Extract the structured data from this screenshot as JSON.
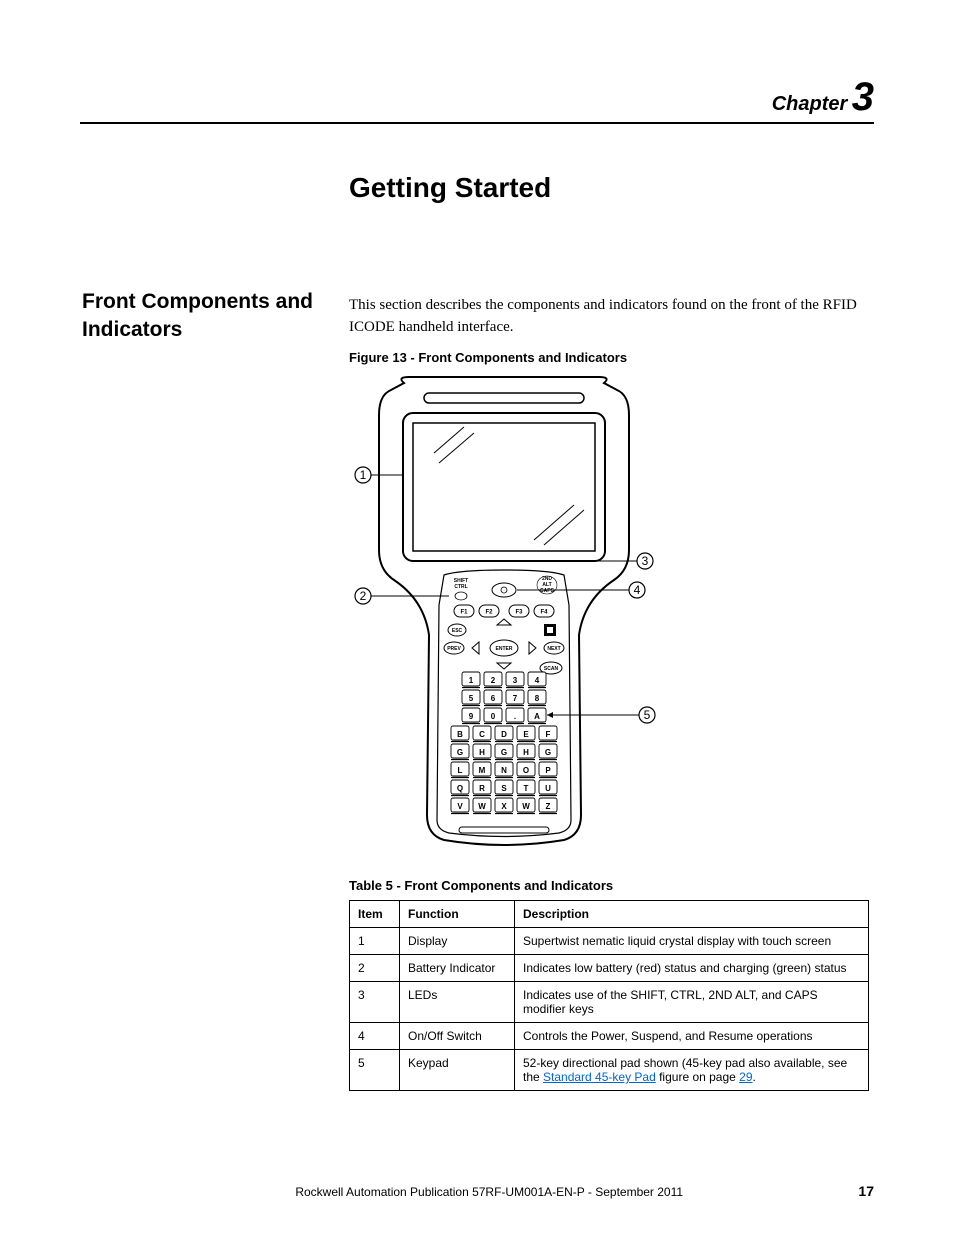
{
  "chapter": {
    "label": "Chapter",
    "number": "3"
  },
  "page_title": "Getting Started",
  "section_title": "Front Components and Indicators",
  "intro_text": "This section describes the components and indicators found on the front of the RFID ICODE handheld interface.",
  "figure": {
    "caption": "Figure 13 - Front Components and Indicators",
    "callouts": [
      "1",
      "2",
      "3",
      "4",
      "5"
    ],
    "keys": {
      "fkeys": [
        "F1",
        "F2",
        "F3",
        "F4"
      ],
      "nav": {
        "esc": "ESC",
        "prev": "PREV",
        "enter": "ENTER",
        "next": "NEXT",
        "scan": "SCAN"
      },
      "top_labels": {
        "left": "SHIFT\nCTRL",
        "right": "2ND\nALT\nCAPS"
      },
      "grid": [
        [
          "1",
          "2",
          "3",
          "4"
        ],
        [
          "5",
          "6",
          "7",
          "8"
        ],
        [
          "9",
          "0",
          ".",
          "A"
        ],
        [
          "B",
          "C",
          "D",
          "E",
          "F"
        ],
        [
          "G",
          "H",
          "G",
          "H",
          "G"
        ],
        [
          "L",
          "M",
          "N",
          "O",
          "P"
        ],
        [
          "Q",
          "R",
          "S",
          "T",
          "U"
        ],
        [
          "V",
          "W",
          "X",
          "W",
          "Z"
        ]
      ]
    }
  },
  "table": {
    "caption": "Table 5 - Front Components and Indicators",
    "headers": [
      "Item",
      "Function",
      "Description"
    ],
    "rows": [
      {
        "item": "1",
        "func": "Display",
        "desc": "Supertwist nematic liquid crystal display with touch screen"
      },
      {
        "item": "2",
        "func": "Battery Indicator",
        "desc": "Indicates low battery (red) status and charging (green) status"
      },
      {
        "item": "3",
        "func": "LEDs",
        "desc": "Indicates use of the SHIFT, CTRL, 2ND ALT, and CAPS modifier keys"
      },
      {
        "item": "4",
        "func": "On/Off Switch",
        "desc": "Controls the Power, Suspend, and Resume operations"
      },
      {
        "item": "5",
        "func": "Keypad",
        "desc_pre": "52-key directional pad shown (45-key pad also available, see the ",
        "desc_link": "Standard 45-key Pad",
        "desc_mid": " figure on page ",
        "desc_page": "29",
        "desc_post": "."
      }
    ]
  },
  "footer": {
    "publication": "Rockwell Automation Publication 57RF-UM001A-EN-P - September 2011",
    "page": "17"
  },
  "colors": {
    "link": "#0066cc",
    "text": "#000000",
    "bg": "#ffffff"
  }
}
